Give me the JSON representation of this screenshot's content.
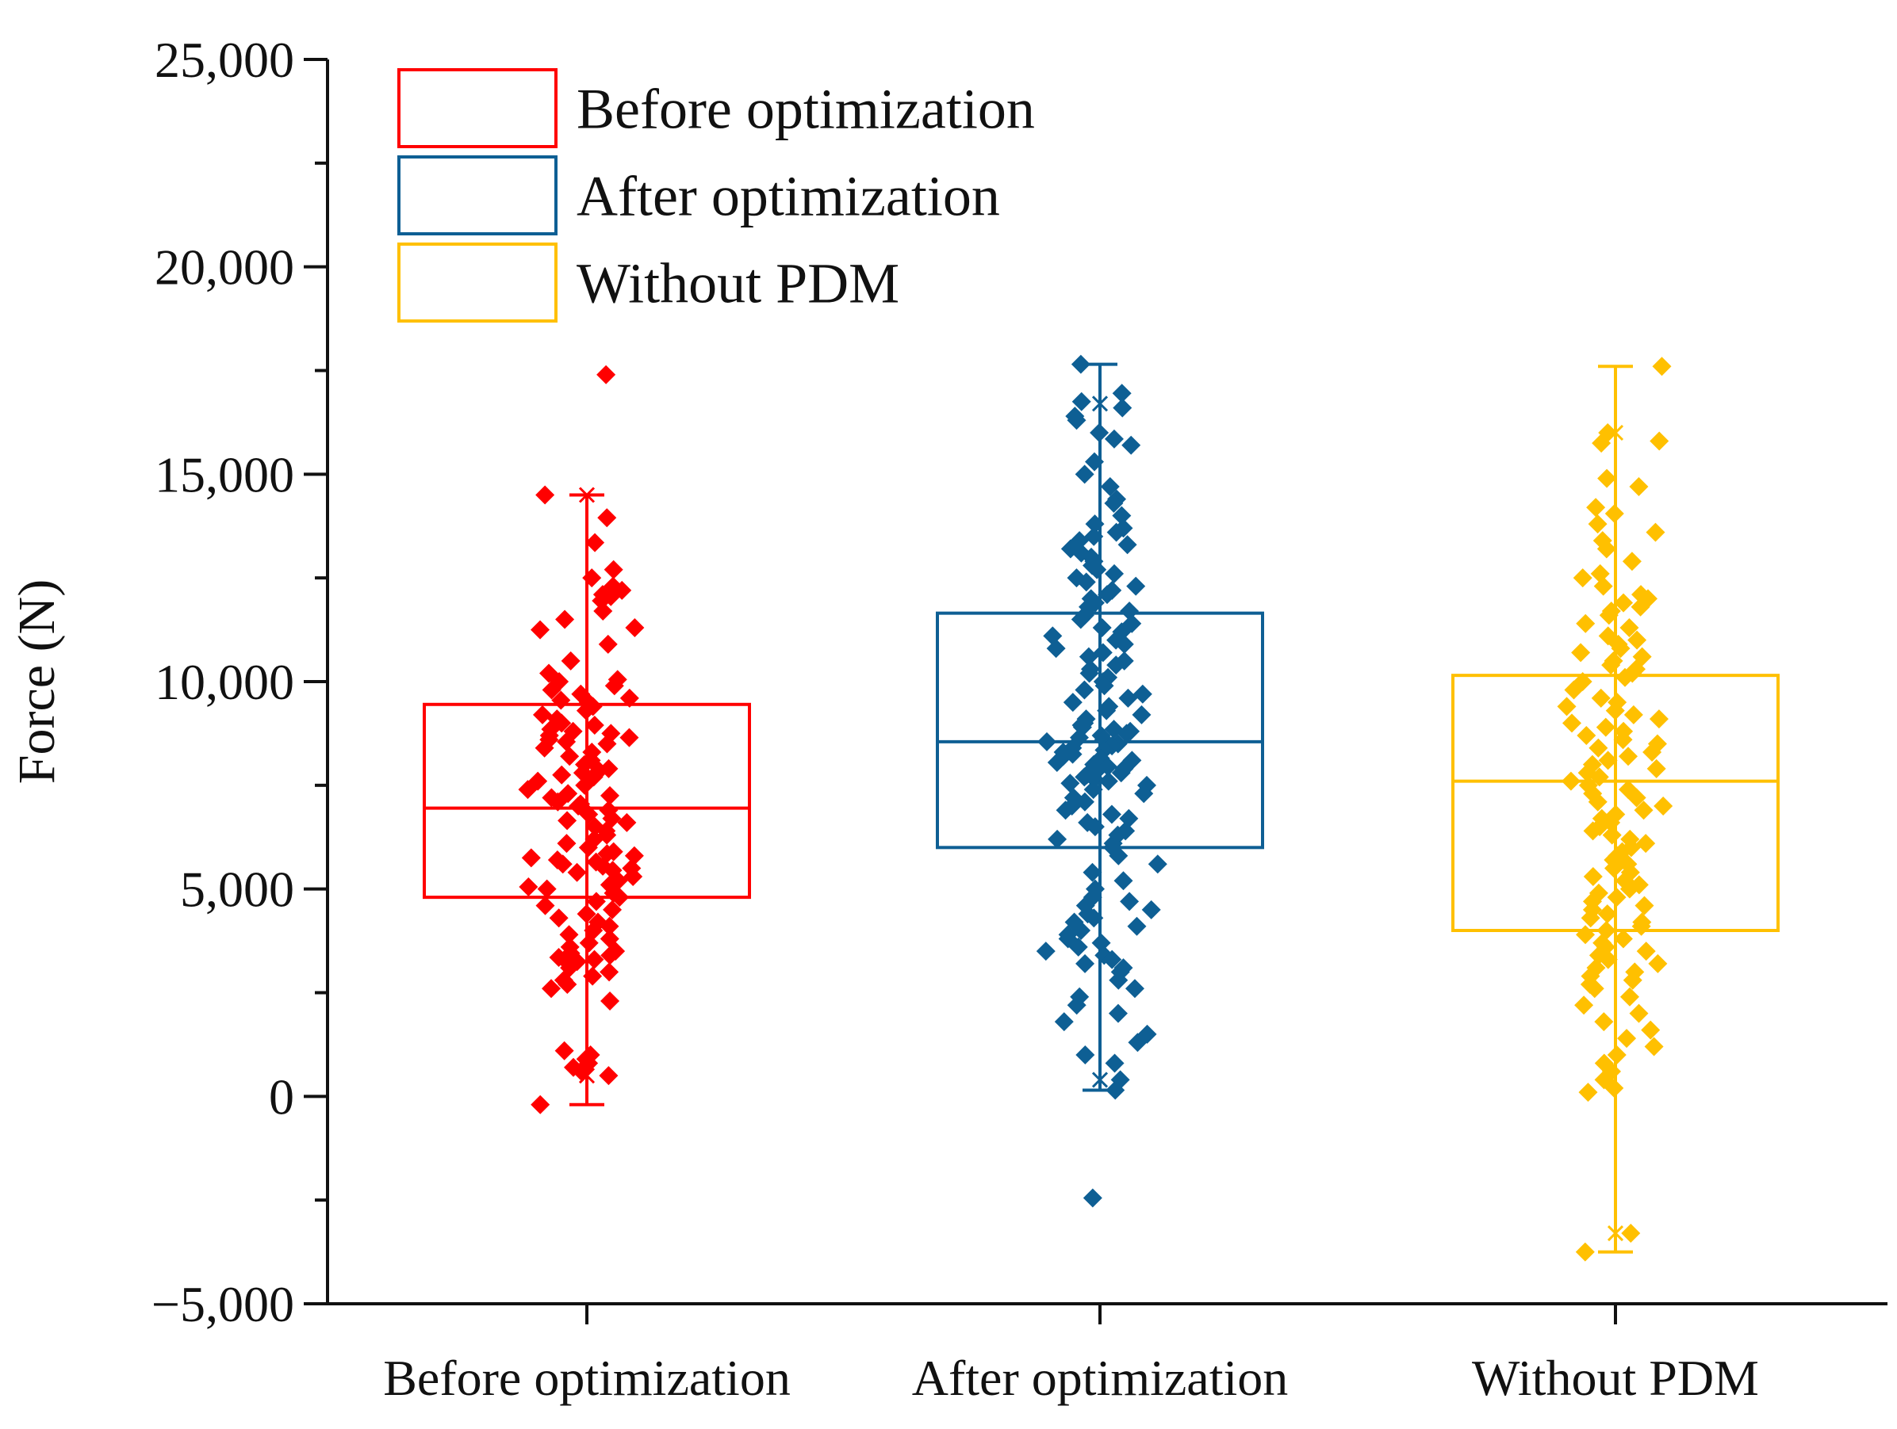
{
  "chart_data": {
    "type": "box",
    "title": "",
    "xlabel": "",
    "ylabel": "Force (N)",
    "ylim": [
      -5000,
      25000
    ],
    "y_ticks": [
      -5000,
      0,
      5000,
      10000,
      15000,
      20000,
      25000
    ],
    "y_tick_labels": [
      "−5,000",
      "0",
      "5,000",
      "10,000",
      "15,000",
      "20,000",
      "25,000"
    ],
    "categories": [
      "Before optimization",
      "After optimization",
      "Without PDM"
    ],
    "legend": {
      "position": "top-left",
      "entries": [
        "Before optimization",
        "After optimization",
        "Without PDM"
      ]
    },
    "grid": false,
    "series": [
      {
        "name": "Before optimization",
        "color": "#ff0000",
        "box": {
          "whisker_low": -200,
          "q1": 4800,
          "median": 6950,
          "q3": 9450,
          "whisker_high": 14500,
          "min_marker": 500,
          "max_marker": 14500
        },
        "points": [
          17400,
          14500,
          13950,
          13350,
          12700,
          12500,
          12300,
          12200,
          12100,
          12050,
          11950,
          11700,
          11500,
          11300,
          11250,
          10900,
          10500,
          10200,
          10050,
          10000,
          9900,
          9800,
          9700,
          9600,
          9550,
          9500,
          9400,
          9300,
          9200,
          9100,
          9000,
          8950,
          8850,
          8800,
          8750,
          8700,
          8650,
          8600,
          8550,
          8500,
          8400,
          8300,
          8200,
          8100,
          8000,
          7900,
          7850,
          7800,
          7750,
          7700,
          7600,
          7500,
          7400,
          7300,
          7250,
          7200,
          7100,
          7050,
          7000,
          6900,
          6800,
          6700,
          6650,
          6600,
          6500,
          6400,
          6300,
          6200,
          6100,
          6000,
          5900,
          5850,
          5800,
          5750,
          5700,
          5650,
          5600,
          5550,
          5500,
          5450,
          5400,
          5300,
          5200,
          5100,
          5050,
          5000,
          4900,
          4800,
          4700,
          4600,
          4500,
          4400,
          4300,
          4200,
          4100,
          4000,
          3900,
          3800,
          3700,
          3600,
          3500,
          3450,
          3400,
          3350,
          3300,
          3250,
          3200,
          3100,
          3000,
          2900,
          2800,
          2700,
          2600,
          2300,
          1100,
          1000,
          900,
          800,
          700,
          600,
          500,
          -200
        ]
      },
      {
        "name": "After optimization",
        "color": "#0e5f94",
        "box": {
          "whisker_low": 150,
          "q1": 6000,
          "median": 8550,
          "q3": 11650,
          "whisker_high": 17650,
          "min_marker": 400,
          "max_marker": 16700
        },
        "points": [
          17650,
          16950,
          16750,
          16600,
          16400,
          16300,
          16000,
          15850,
          15700,
          15300,
          15000,
          14700,
          14400,
          14300,
          14000,
          13800,
          13700,
          13600,
          13500,
          13400,
          13300,
          13200,
          13100,
          13000,
          12900,
          12800,
          12700,
          12600,
          12500,
          12400,
          12300,
          12200,
          12100,
          12000,
          11900,
          11850,
          11800,
          11700,
          11600,
          11500,
          11400,
          11300,
          11200,
          11100,
          11000,
          10900,
          10800,
          10700,
          10600,
          10500,
          10400,
          10300,
          10200,
          10100,
          10000,
          9900,
          9800,
          9700,
          9600,
          9500,
          9400,
          9300,
          9200,
          9100,
          9000,
          8950,
          8900,
          8850,
          8800,
          8750,
          8700,
          8650,
          8600,
          8550,
          8500,
          8450,
          8400,
          8350,
          8300,
          8250,
          8200,
          8150,
          8100,
          8050,
          8000,
          7950,
          7900,
          7850,
          7800,
          7750,
          7700,
          7650,
          7600,
          7550,
          7500,
          7400,
          7300,
          7200,
          7100,
          7000,
          6900,
          6800,
          6700,
          6600,
          6500,
          6400,
          6300,
          6200,
          6100,
          6000,
          5800,
          5600,
          5400,
          5200,
          5000,
          4800,
          4700,
          4600,
          4500,
          4400,
          4300,
          4200,
          4100,
          4000,
          3900,
          3800,
          3700,
          3600,
          3500,
          3400,
          3300,
          3200,
          3100,
          3000,
          2800,
          2600,
          2400,
          2200,
          2000,
          1800,
          1500,
          1300,
          1000,
          800,
          400,
          150,
          -2450
        ]
      },
      {
        "name": "Without PDM",
        "color": "#ffc000",
        "box": {
          "whisker_low": -3750,
          "q1": 4000,
          "median": 7600,
          "q3": 10150,
          "whisker_high": 17600,
          "min_marker": -3300,
          "max_marker": 16000
        },
        "points": [
          17600,
          16000,
          15800,
          15750,
          14900,
          14700,
          14200,
          14050,
          13800,
          13600,
          13400,
          13200,
          12900,
          12600,
          12500,
          12300,
          12100,
          12000,
          11900,
          11800,
          11700,
          11600,
          11400,
          11300,
          11100,
          11000,
          10900,
          10800,
          10700,
          10600,
          10500,
          10400,
          10300,
          10200,
          10100,
          10000,
          9800,
          9600,
          9500,
          9400,
          9300,
          9200,
          9100,
          9000,
          8900,
          8800,
          8700,
          8600,
          8500,
          8400,
          8300,
          8200,
          8100,
          8000,
          7900,
          7800,
          7700,
          7600,
          7500,
          7400,
          7300,
          7200,
          7100,
          7000,
          6900,
          6800,
          6700,
          6600,
          6500,
          6400,
          6300,
          6200,
          6100,
          6000,
          5900,
          5800,
          5700,
          5600,
          5500,
          5400,
          5300,
          5200,
          5100,
          5000,
          4900,
          4800,
          4700,
          4600,
          4500,
          4400,
          4300,
          4200,
          4100,
          4000,
          3900,
          3800,
          3700,
          3600,
          3500,
          3400,
          3300,
          3200,
          3100,
          3000,
          2900,
          2800,
          2700,
          2600,
          2400,
          2200,
          2000,
          1800,
          1600,
          1400,
          1200,
          1000,
          800,
          600,
          400,
          200,
          100,
          -3300,
          -3750
        ]
      }
    ]
  }
}
